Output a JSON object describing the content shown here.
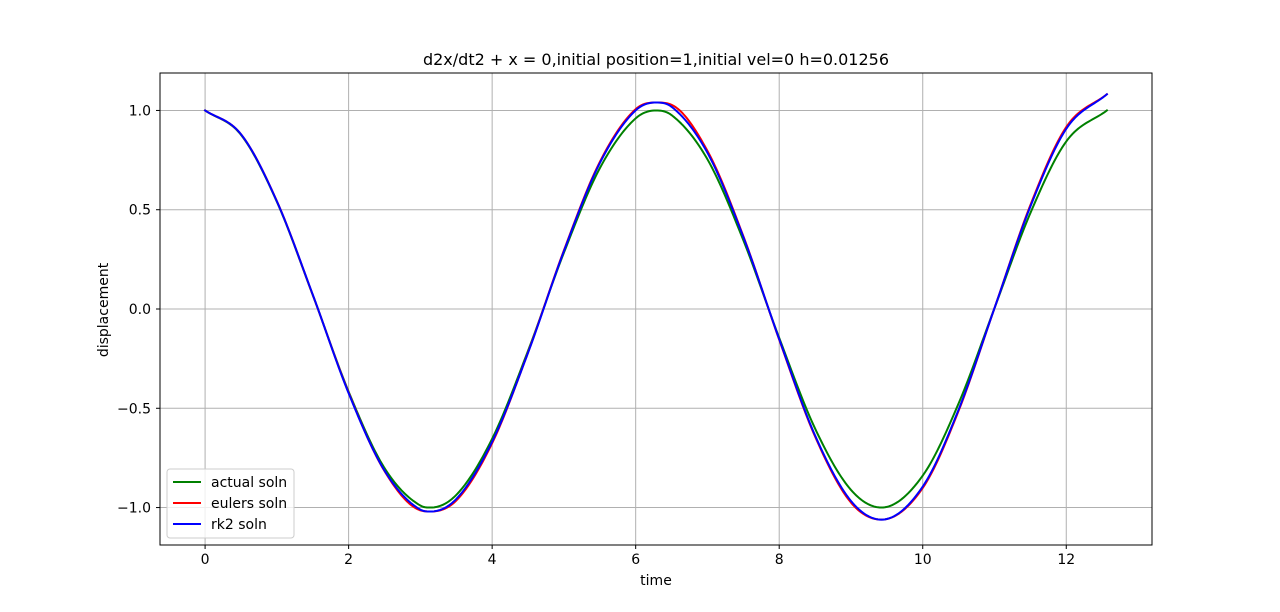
{
  "chart_data": {
    "type": "line",
    "title": "d2x/dt2 + x = 0,initial position=1,initial vel=0 h=0.01256",
    "xlabel": "time",
    "ylabel": "displacement",
    "xlim": [
      -0.6283,
      13.1947
    ],
    "ylim": [
      -1.1886,
      1.1886
    ],
    "xticks": [
      0,
      2,
      4,
      6,
      8,
      10,
      12
    ],
    "xtick_labels": [
      "0",
      "2",
      "4",
      "6",
      "8",
      "10",
      "12"
    ],
    "yticks": [
      -1.0,
      -0.5,
      0.0,
      0.5,
      1.0
    ],
    "ytick_labels": [
      "−1.0",
      "−0.5",
      "0.0",
      "0.5",
      "1.0"
    ],
    "grid": true,
    "legend_position": "lower-left",
    "x_range": [
      0,
      12.566
    ],
    "series": [
      {
        "name": "actual soln",
        "color": "#008000",
        "x": [
          0,
          0.5,
          1,
          1.5,
          2,
          2.5,
          3,
          3.1416,
          3.5,
          4,
          4.5,
          5,
          5.5,
          6,
          6.2832,
          6.5,
          7,
          7.5,
          8,
          8.5,
          9,
          9.4248,
          10,
          10.5,
          11,
          11.5,
          12,
          12.566
        ],
        "y": [
          1.0,
          0.8776,
          0.5403,
          0.0707,
          -0.4161,
          -0.8011,
          -0.99,
          -1.0,
          -0.9365,
          -0.6536,
          -0.2108,
          0.2837,
          0.7087,
          0.9602,
          1.0,
          0.9766,
          0.7539,
          0.3466,
          -0.1455,
          -0.602,
          -0.9111,
          -1.0,
          -0.8391,
          -0.4755,
          0.0044,
          0.4833,
          0.8439,
          1.0
        ]
      },
      {
        "name": "eulers soln",
        "color": "#ff0000",
        "x": [
          0,
          0.5,
          1,
          1.5,
          2,
          2.5,
          3,
          3.1416,
          3.5,
          4,
          4.5,
          5,
          5.5,
          6,
          6.2832,
          6.5,
          7,
          7.5,
          8,
          8.5,
          9,
          9.4248,
          10,
          10.5,
          11,
          11.5,
          12,
          12.566
        ],
        "y": [
          1.0,
          0.8803,
          0.5437,
          0.0716,
          -0.4214,
          -0.8163,
          -1.0141,
          -1.0198,
          -0.9649,
          -0.6757,
          -0.2189,
          0.2953,
          0.7406,
          1.0066,
          1.04,
          1.0284,
          0.7964,
          0.3673,
          -0.1547,
          -0.6423,
          -0.9748,
          -1.0606,
          -0.9012,
          -0.5124,
          0.0047,
          0.5233,
          0.9164,
          1.0816
        ]
      },
      {
        "name": "rk2 soln",
        "color": "#0000ff",
        "x": [
          0,
          0.5,
          1,
          1.5,
          2,
          2.5,
          3,
          3.1416,
          3.5,
          4,
          4.5,
          5,
          5.5,
          6,
          6.2832,
          6.5,
          7,
          7.5,
          8,
          8.5,
          9,
          9.4248,
          10,
          10.5,
          11,
          11.5,
          12,
          12.566
        ],
        "y": [
          1.0,
          0.8802,
          0.5424,
          0.0725,
          -0.4239,
          -0.8136,
          -1.0105,
          -1.02,
          -0.9571,
          -0.6684,
          -0.2205,
          0.2916,
          0.7347,
          1.0005,
          1.04,
          1.0185,
          0.7869,
          0.3629,
          -0.1517,
          -0.6371,
          -0.9668,
          -1.0609,
          -0.8942,
          -0.5068,
          0.0045,
          0.5163,
          0.9076,
          1.0815
        ]
      }
    ]
  }
}
